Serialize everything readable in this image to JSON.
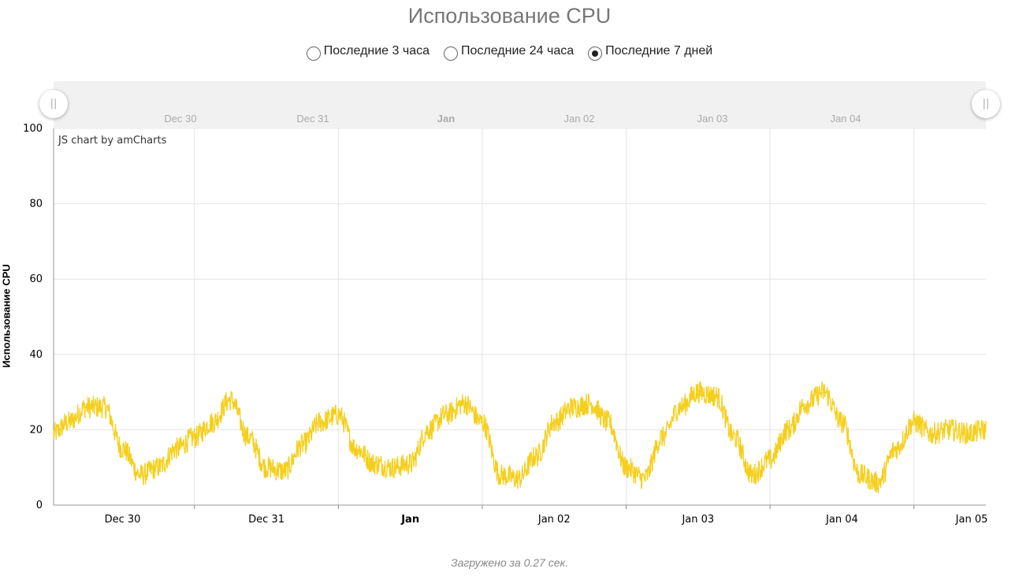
{
  "page": {
    "title": "Использование CPU",
    "ranges": [
      {
        "label": "Последние 3 часа",
        "selected": false
      },
      {
        "label": "Последние 24 часа",
        "selected": false
      },
      {
        "label": "Последние 7 дней",
        "selected": true
      }
    ],
    "credit": "JS chart by amCharts",
    "footer": "Загружено за 0.27 сек.",
    "scrollbar_labels": [
      "Dec 30",
      "Dec 31",
      "Jan",
      "Jan 02",
      "Jan 03",
      "Jan 04"
    ],
    "scrollbar_bold_label": "Jan"
  },
  "chart_data": {
    "type": "line",
    "title": "Использование CPU",
    "ylabel": "Использование CPU",
    "xlabel": "",
    "ylim": [
      0,
      100
    ],
    "yticks": [
      0,
      20,
      40,
      60,
      80,
      100
    ],
    "xlim": [
      "Dec 29 12:30",
      "Jan 05 00:00"
    ],
    "xticks": [
      "Dec 30",
      "Dec 31",
      "Jan",
      "Jan 02",
      "Jan 03",
      "Jan 04",
      "Jan 05"
    ],
    "bold_xtick": "Jan",
    "grid": true,
    "line_color": "#f5cf1e",
    "series": [
      {
        "x": [
          "Dec 29 12:30",
          "Dec 29 15:00",
          "Dec 29 18:00",
          "Dec 29 21:00",
          "Dec 30 00:00",
          "Dec 30 03:00",
          "Dec 30 06:00",
          "Dec 30 09:00",
          "Dec 30 12:00",
          "Dec 30 15:00",
          "Dec 30 18:00",
          "Dec 30 21:00",
          "Dec 31 00:00",
          "Dec 31 03:00",
          "Dec 31 06:00",
          "Dec 31 09:00",
          "Dec 31 12:00",
          "Dec 31 15:00",
          "Dec 31 18:00",
          "Dec 31 21:00",
          "Jan 01 00:00",
          "Jan 01 03:00",
          "Jan 01 06:00",
          "Jan 01 09:00",
          "Jan 01 12:00",
          "Jan 01 15:00",
          "Jan 01 18:00",
          "Jan 01 21:00",
          "Jan 02 00:00",
          "Jan 02 03:00",
          "Jan 02 06:00",
          "Jan 02 09:00",
          "Jan 02 12:00",
          "Jan 02 15:00",
          "Jan 02 18:00",
          "Jan 02 21:00",
          "Jan 03 00:00",
          "Jan 03 03:00",
          "Jan 03 06:00",
          "Jan 03 09:00",
          "Jan 03 12:00",
          "Jan 03 15:00",
          "Jan 03 18:00",
          "Jan 03 21:00",
          "Jan 04 00:00",
          "Jan 04 03:00",
          "Jan 04 06:00",
          "Jan 04 09:00",
          "Jan 04 12:00",
          "Jan 04 15:00",
          "Jan 04 18:00",
          "Jan 04 21:00",
          "Jan 05 00:00"
        ],
        "values": [
          19,
          22,
          26,
          26,
          15,
          8,
          10,
          15,
          18,
          22,
          28,
          18,
          10,
          9,
          16,
          22,
          24,
          15,
          11,
          10,
          11,
          20,
          24,
          27,
          22,
          8,
          7,
          13,
          22,
          26,
          27,
          22,
          10,
          7,
          18,
          26,
          30,
          29,
          18,
          8,
          12,
          20,
          27,
          30,
          22,
          8,
          6,
          15,
          22,
          19,
          20,
          19,
          20
        ]
      }
    ]
  }
}
